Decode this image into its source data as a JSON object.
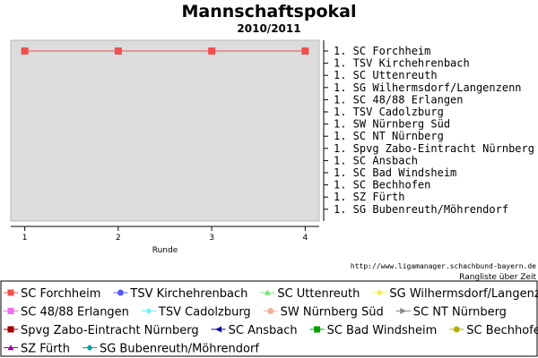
{
  "chart_data": {
    "type": "line",
    "title": "Mannschaftspokal",
    "subtitle": "2010/2011",
    "xlabel": "Runde",
    "x": [
      1,
      2,
      3,
      4
    ],
    "x_ticks": [
      "1",
      "2",
      "3",
      "4"
    ],
    "xlim": [
      0.85,
      4.15
    ],
    "ylim": [
      1,
      14
    ],
    "y_inverted": true,
    "y_tick_labels": [
      "1. SC Forchheim",
      "1. TSV Kirchehrenbach",
      "1. SC Uttenreuth",
      "1. SG Wilhermsdorf/Langenzenn",
      "1. SC 48/88 Erlangen",
      "1. TSV Cadolzburg",
      "1. SW Nürnberg Süd",
      "1. SC NT Nürnberg",
      "1. Spvg Zabo-Eintracht Nürnberg",
      "1. SC Ansbach",
      "1. SC Bad Windsheim",
      "1. SC Bechhofen",
      "1. SZ Fürth",
      "1. SG Bubenreuth/Möhrendorf"
    ],
    "grid": false,
    "legend_placement": "bottom",
    "series": [
      {
        "name": "SC Forchheim",
        "values": [
          1,
          1,
          1,
          1
        ],
        "color": "#f05050",
        "marker": "square"
      }
    ],
    "legend": [
      {
        "name": "SC Forchheim",
        "color": "#f05050",
        "marker": "square"
      },
      {
        "name": "TSV Kirchehrenbach",
        "color": "#5a5af0",
        "marker": "circle"
      },
      {
        "name": "SC Uttenreuth",
        "color": "#7ae07a",
        "marker": "triangle"
      },
      {
        "name": "SG Wilhermsdorf/Langenzenn",
        "color": "#f0f050",
        "marker": "diamond"
      },
      {
        "name": "SC 48/88 Erlangen",
        "color": "#f070f0",
        "marker": "square"
      },
      {
        "name": "TSV Cadolzburg",
        "color": "#70f0f0",
        "marker": "diamond"
      },
      {
        "name": "SW Nürnberg Süd",
        "color": "#f0b0a0",
        "marker": "circle"
      },
      {
        "name": "SC NT Nürnberg",
        "color": "#8a8a8a",
        "marker": "arrow"
      },
      {
        "name": "Spvg Zabo-Eintracht Nürnberg",
        "color": "#a00000",
        "marker": "square"
      },
      {
        "name": "SC Ansbach",
        "color": "#0000a0",
        "marker": "arrow-left"
      },
      {
        "name": "SC Bad Windsheim",
        "color": "#00a000",
        "marker": "square"
      },
      {
        "name": "SC Bechhofen",
        "color": "#b0b000",
        "marker": "circle"
      },
      {
        "name": "SZ Fürth",
        "color": "#a000a0",
        "marker": "triangle"
      },
      {
        "name": "SG Bubenreuth/Möhrendorf",
        "color": "#00a0a0",
        "marker": "diamond"
      }
    ],
    "footer_url": "http://www.ligamanager.schachbund-bayern.de",
    "footer_caption": "Rangliste über Zeit"
  }
}
